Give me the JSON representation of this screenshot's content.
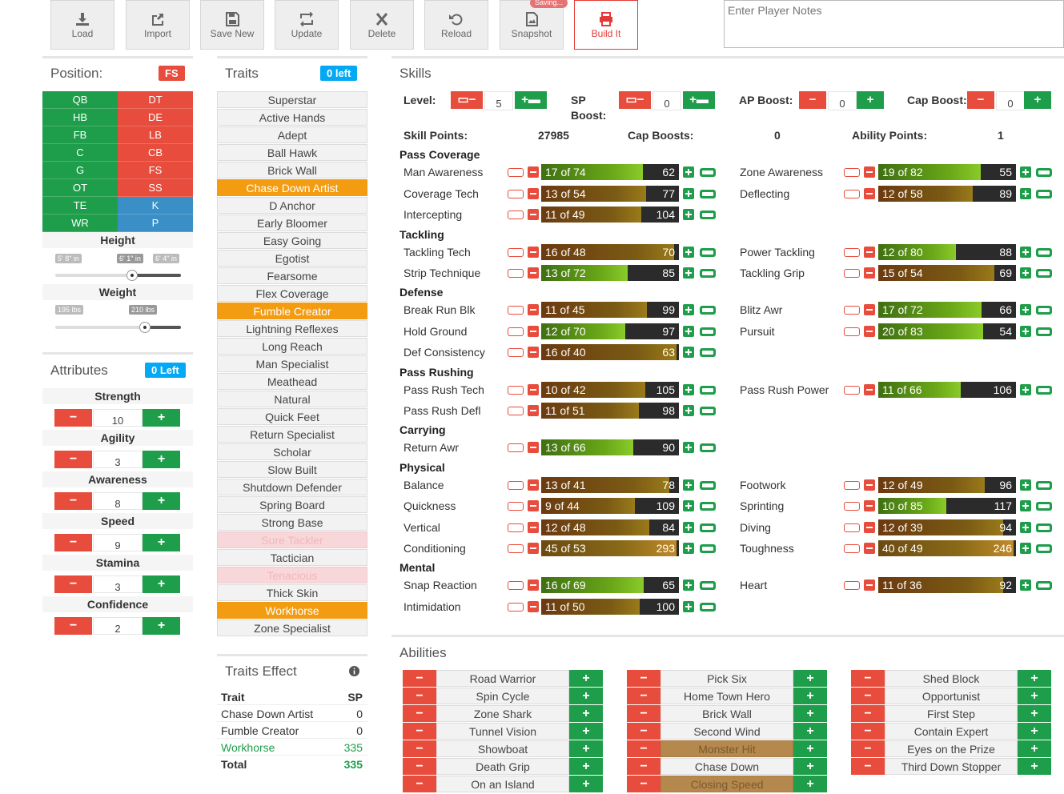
{
  "toolbar": {
    "buttons": [
      {
        "key": "load",
        "label": "Load"
      },
      {
        "key": "import",
        "label": "Import"
      },
      {
        "key": "save_new",
        "label": "Save New"
      },
      {
        "key": "update",
        "label": "Update"
      },
      {
        "key": "delete",
        "label": "Delete"
      },
      {
        "key": "reload",
        "label": "Reload"
      },
      {
        "key": "snapshot",
        "label": "Snapshot"
      },
      {
        "key": "build",
        "label": "Build It"
      }
    ],
    "saving_badge": "Saving...",
    "notes_placeholder": "Enter Player Notes"
  },
  "position": {
    "title": "Position:",
    "selected": "FS",
    "left_col": [
      "QB",
      "HB",
      "FB",
      "C",
      "G",
      "OT",
      "TE",
      "WR"
    ],
    "right_col": [
      "DT",
      "DE",
      "LB",
      "CB",
      "FS",
      "SS",
      "K",
      "P"
    ],
    "height_label": "Height",
    "height_min": "5' 8\" in",
    "height_value": "6' 1\" in",
    "height_max": "6' 4\" in",
    "weight_label": "Weight",
    "weight_min": "195 lbs",
    "weight_value": "210 lbs"
  },
  "attributes": {
    "title": "Attributes",
    "left_badge": "0 Left",
    "items": [
      {
        "name": "Strength",
        "value": "10"
      },
      {
        "name": "Agility",
        "value": "3"
      },
      {
        "name": "Awareness",
        "value": "8"
      },
      {
        "name": "Speed",
        "value": "9"
      },
      {
        "name": "Stamina",
        "value": "3"
      },
      {
        "name": "Confidence",
        "value": "2"
      }
    ]
  },
  "traits": {
    "title": "Traits",
    "left_badge": "0 left",
    "items": [
      {
        "name": "Superstar",
        "state": "normal"
      },
      {
        "name": "Active Hands",
        "state": "normal"
      },
      {
        "name": "Adept",
        "state": "normal"
      },
      {
        "name": "Ball Hawk",
        "state": "normal"
      },
      {
        "name": "Brick Wall",
        "state": "normal"
      },
      {
        "name": "Chase Down Artist",
        "state": "selected"
      },
      {
        "name": "D Anchor",
        "state": "normal"
      },
      {
        "name": "Early Bloomer",
        "state": "normal"
      },
      {
        "name": "Easy Going",
        "state": "normal"
      },
      {
        "name": "Egotist",
        "state": "normal"
      },
      {
        "name": "Fearsome",
        "state": "normal"
      },
      {
        "name": "Flex Coverage",
        "state": "normal"
      },
      {
        "name": "Fumble Creator",
        "state": "selected"
      },
      {
        "name": "Lightning Reflexes",
        "state": "normal"
      },
      {
        "name": "Long Reach",
        "state": "normal"
      },
      {
        "name": "Man Specialist",
        "state": "normal"
      },
      {
        "name": "Meathead",
        "state": "normal"
      },
      {
        "name": "Natural",
        "state": "normal"
      },
      {
        "name": "Quick Feet",
        "state": "normal"
      },
      {
        "name": "Return Specialist",
        "state": "normal"
      },
      {
        "name": "Scholar",
        "state": "normal"
      },
      {
        "name": "Slow Built",
        "state": "normal"
      },
      {
        "name": "Shutdown Defender",
        "state": "normal"
      },
      {
        "name": "Spring Board",
        "state": "normal"
      },
      {
        "name": "Strong Base",
        "state": "normal"
      },
      {
        "name": "Sure Tackler",
        "state": "disabled"
      },
      {
        "name": "Tactician",
        "state": "normal"
      },
      {
        "name": "Tenacious",
        "state": "disabled"
      },
      {
        "name": "Thick Skin",
        "state": "normal"
      },
      {
        "name": "Workhorse",
        "state": "selected"
      },
      {
        "name": "Zone Specialist",
        "state": "normal"
      }
    ]
  },
  "traits_effect": {
    "title": "Traits Effect",
    "col_trait": "Trait",
    "col_sp": "SP",
    "rows": [
      {
        "name": "Chase Down Artist",
        "sp": "0",
        "green": false
      },
      {
        "name": "Fumble Creator",
        "sp": "0",
        "green": false
      },
      {
        "name": "Workhorse",
        "sp": "335",
        "green": true
      }
    ],
    "total_label": "Total",
    "total_value": "335"
  },
  "skills": {
    "title": "Skills",
    "level_label": "Level:",
    "level_value": "5",
    "sp_label": "SP",
    "sp_label2": "Boost:",
    "sp_value": "0",
    "ap_label": "AP Boost:",
    "ap_value": "0",
    "cap_label": "Cap Boost:",
    "cap_value": "0",
    "skill_points_label": "Skill Points:",
    "skill_points_value": "27985",
    "cap_boosts_label": "Cap Boosts:",
    "cap_boosts_value": "0",
    "ability_points_label": "Ability Points:",
    "ability_points_value": "1",
    "sections": [
      {
        "name": "Pass Coverage",
        "rows": [
          [
            {
              "name": "Man Awareness",
              "cur": 17,
              "max": 74,
              "val": "62"
            },
            {
              "name": "Zone Awareness",
              "cur": 19,
              "max": 82,
              "val": "55"
            }
          ],
          [
            {
              "name": "Coverage Tech",
              "cur": 13,
              "max": 54,
              "val": "77"
            },
            {
              "name": "Deflecting",
              "cur": 12,
              "max": 58,
              "val": "89"
            }
          ],
          [
            {
              "name": "Intercepting",
              "cur": 11,
              "max": 49,
              "val": "104"
            },
            null
          ]
        ]
      },
      {
        "name": "Tackling",
        "rows": [
          [
            {
              "name": "Tackling Tech",
              "cur": 16,
              "max": 48,
              "val": "70"
            },
            {
              "name": "Power Tackling",
              "cur": 12,
              "max": 80,
              "val": "88"
            }
          ],
          [
            {
              "name": "Strip Technique",
              "cur": 13,
              "max": 72,
              "val": "85"
            },
            {
              "name": "Tackling Grip",
              "cur": 15,
              "max": 54,
              "val": "69"
            }
          ]
        ]
      },
      {
        "name": "Defense",
        "rows": [
          [
            {
              "name": "Break Run Blk",
              "cur": 11,
              "max": 45,
              "val": "99"
            },
            {
              "name": "Blitz Awr",
              "cur": 17,
              "max": 72,
              "val": "66"
            }
          ],
          [
            {
              "name": "Hold Ground",
              "cur": 12,
              "max": 70,
              "val": "97"
            },
            {
              "name": "Pursuit",
              "cur": 20,
              "max": 83,
              "val": "54"
            }
          ],
          [
            {
              "name": "Def Consistency",
              "cur": 16,
              "max": 40,
              "val": "63"
            },
            null
          ]
        ]
      },
      {
        "name": "Pass Rushing",
        "rows": [
          [
            {
              "name": "Pass Rush Tech",
              "cur": 10,
              "max": 42,
              "val": "105"
            },
            {
              "name": "Pass Rush Power",
              "cur": 11,
              "max": 66,
              "val": "106"
            }
          ],
          [
            {
              "name": "Pass Rush Defl",
              "cur": 11,
              "max": 51,
              "val": "98"
            },
            null
          ]
        ]
      },
      {
        "name": "Carrying",
        "rows": [
          [
            {
              "name": "Return Awr",
              "cur": 13,
              "max": 66,
              "val": "90"
            },
            null
          ]
        ]
      },
      {
        "name": "Physical",
        "rows": [
          [
            {
              "name": "Balance",
              "cur": 13,
              "max": 41,
              "val": "78"
            },
            {
              "name": "Footwork",
              "cur": 12,
              "max": 49,
              "val": "96"
            }
          ],
          [
            {
              "name": "Quickness",
              "cur": 9,
              "max": 44,
              "val": "109"
            },
            {
              "name": "Sprinting",
              "cur": 10,
              "max": 85,
              "val": "117"
            }
          ],
          [
            {
              "name": "Vertical",
              "cur": 12,
              "max": 48,
              "val": "84"
            },
            {
              "name": "Diving",
              "cur": 12,
              "max": 39,
              "val": "94"
            }
          ],
          [
            {
              "name": "Conditioning",
              "cur": 45,
              "max": 53,
              "val": "293"
            },
            {
              "name": "Toughness",
              "cur": 40,
              "max": 49,
              "val": "246"
            }
          ]
        ]
      },
      {
        "name": "Mental",
        "rows": [
          [
            {
              "name": "Snap Reaction",
              "cur": 16,
              "max": 69,
              "val": "65"
            },
            {
              "name": "Heart",
              "cur": 11,
              "max": 36,
              "val": "92"
            }
          ],
          [
            {
              "name": "Intimidation",
              "cur": 11,
              "max": 50,
              "val": "100"
            },
            null
          ]
        ]
      }
    ]
  },
  "abilities": {
    "title": "Abilities",
    "columns": [
      [
        {
          "name": "Road Warrior",
          "sel": false
        },
        {
          "name": "Spin Cycle",
          "sel": false
        },
        {
          "name": "Zone Shark",
          "sel": false
        },
        {
          "name": "Tunnel Vision",
          "sel": false
        },
        {
          "name": "Showboat",
          "sel": false
        },
        {
          "name": "Death Grip",
          "sel": false
        },
        {
          "name": "On an Island",
          "sel": false
        }
      ],
      [
        {
          "name": "Pick Six",
          "sel": false
        },
        {
          "name": "Home Town Hero",
          "sel": false
        },
        {
          "name": "Brick Wall",
          "sel": false
        },
        {
          "name": "Second Wind",
          "sel": false
        },
        {
          "name": "Monster Hit",
          "sel": true
        },
        {
          "name": "Chase Down",
          "sel": false
        },
        {
          "name": "Closing Speed",
          "sel": true
        }
      ],
      [
        {
          "name": "Shed Block",
          "sel": false
        },
        {
          "name": "Opportunist",
          "sel": false
        },
        {
          "name": "First Step",
          "sel": false
        },
        {
          "name": "Contain Expert",
          "sel": false
        },
        {
          "name": "Eyes on the Prize",
          "sel": false
        },
        {
          "name": "Third Down Stopper",
          "sel": false
        }
      ]
    ]
  },
  "colors": {
    "green": "#1e9e4a",
    "red": "#e74c3c",
    "blue": "#3a8fc7",
    "orange": "#f39c12",
    "badge_blue": "#03a9f4"
  }
}
